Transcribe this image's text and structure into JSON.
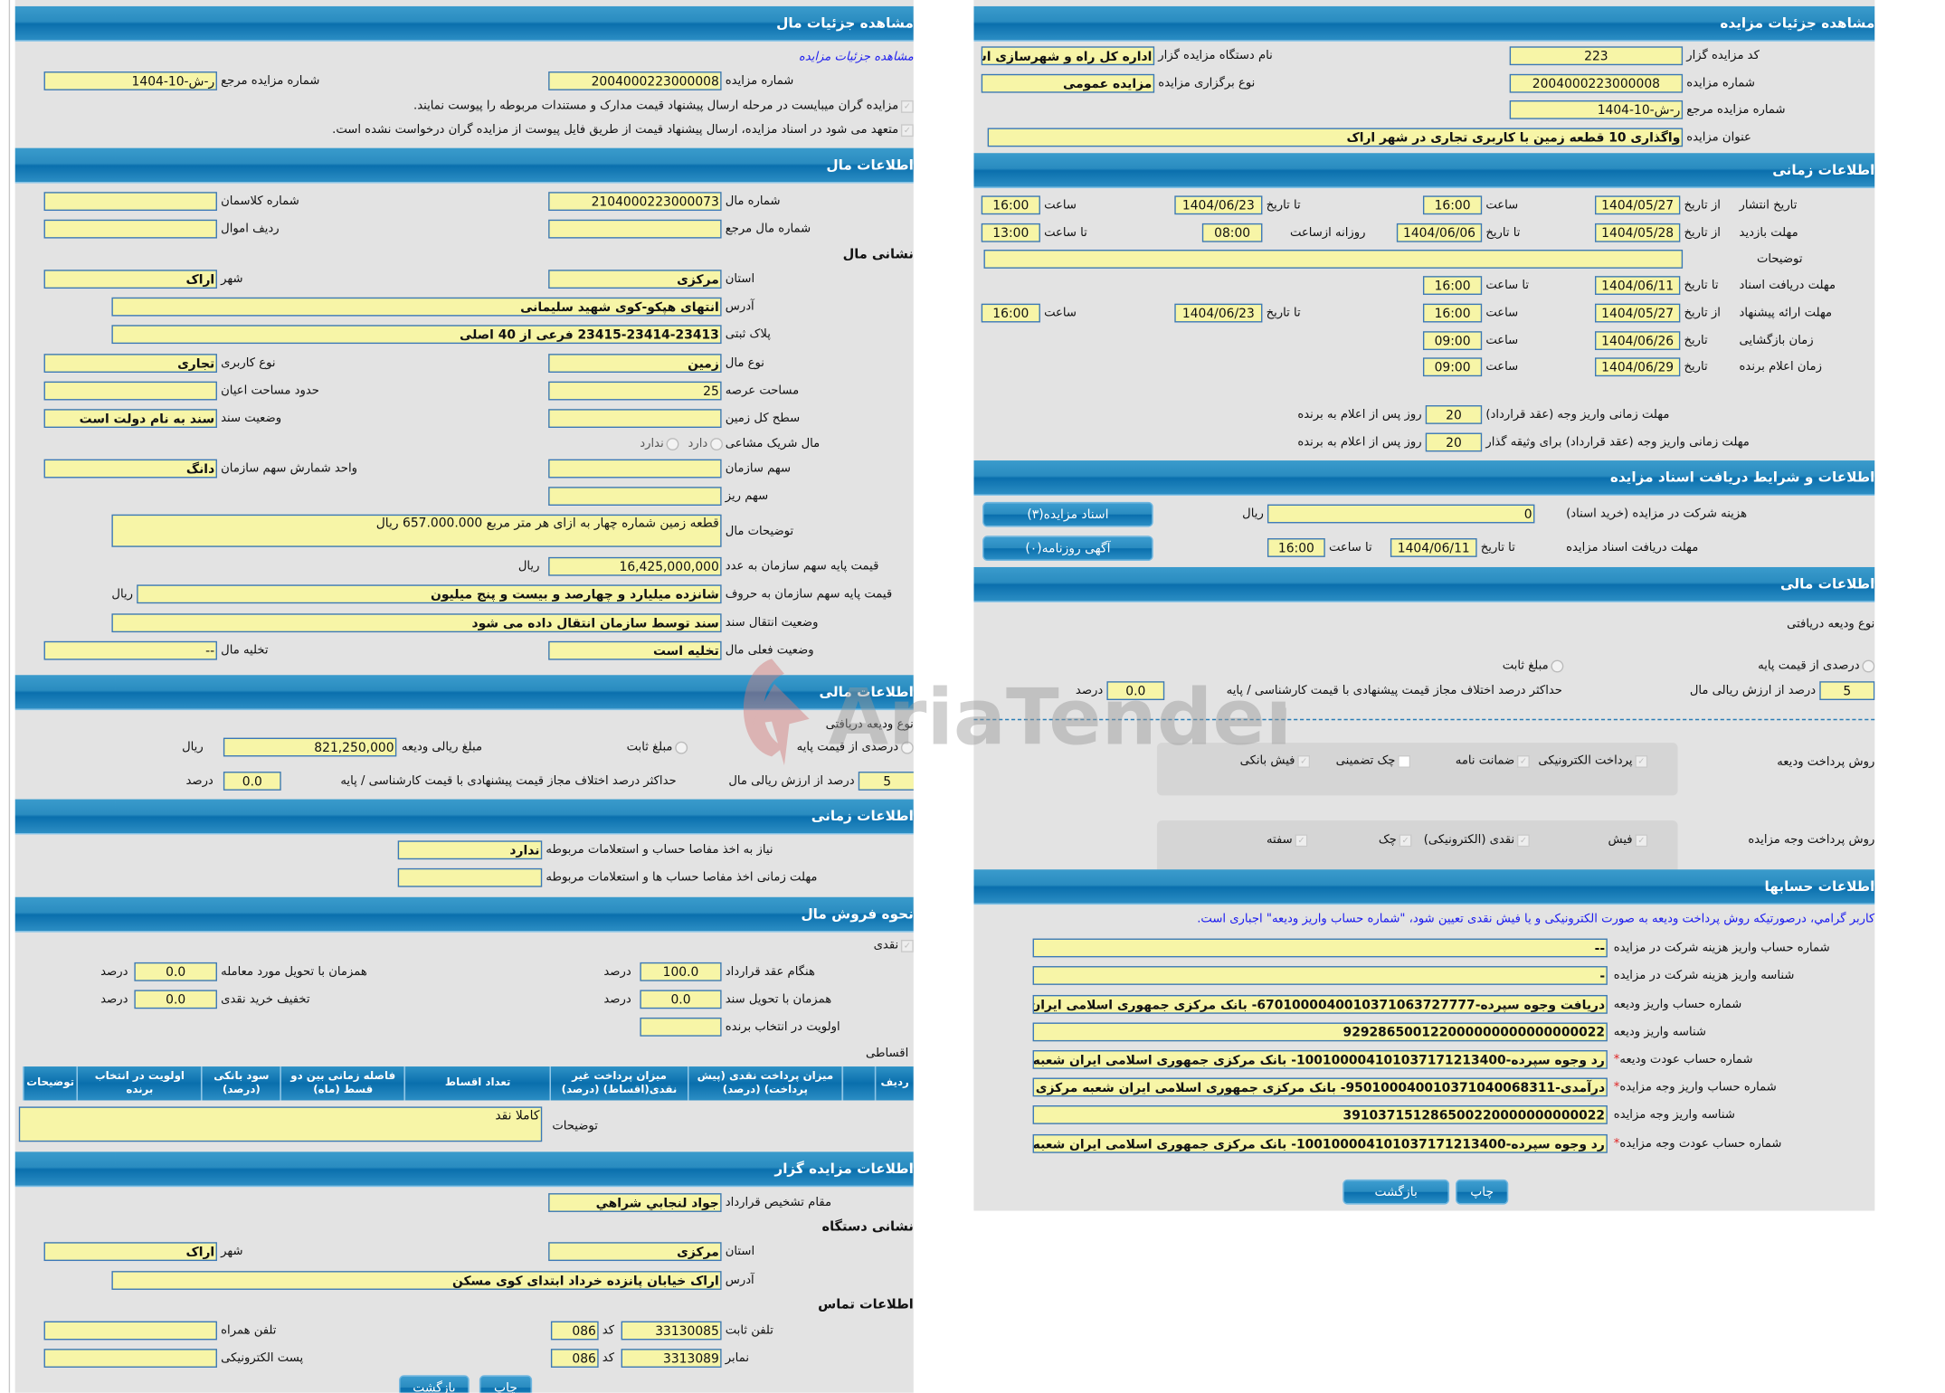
{
  "left": {
    "title": "مشاهده جزئیات مال",
    "link": "مشاهده جزئیات مزایده",
    "auction_no_label": "شماره مزایده",
    "auction_no": "2004000223000008",
    "ref_no_label": "شماره مزایده مرجع",
    "ref_no": "ر-ش-10-1404",
    "notice1": "مزایده گران میبایست در مرحله ارسال پیشنهاد قیمت مدارک و مستندات مربوطه را پیوست نمایند.",
    "notice2": "متعهد می شود در اسناد مزایده، ارسال پیشنهاد قیمت از طریق فایل پیوست از مزایده گران درخواست نشده است.",
    "item": {
      "title": "اطلاعات مال",
      "item_no_label": "شماره مال",
      "item_no": "2104000223000073",
      "class_no_label": "شماره کلاسمان",
      "class_no": "",
      "item_ref_label": "شماره مال مرجع",
      "item_ref": "",
      "row_label": "ردیف اموال",
      "row": "",
      "address_heading": "نشانی مال",
      "province_label": "استان",
      "province": "مرکزی",
      "city_label": "شهر",
      "city": "اراک",
      "address_label": "آدرس",
      "address": "انتهای هپکو-کوی شهید سلیمانی",
      "plate_label": "پلاک ثبتی",
      "plate": "23415-23414-23413 فرعی از 40 اصلی",
      "type_label": "نوع مال",
      "type": "زمین",
      "usage_label": "نوع کاربری",
      "usage": "تجاری",
      "area_label": "مساحت عرصه",
      "area": "25",
      "building_label": "حدود مساحت اعیان",
      "building": "",
      "land_label": "سطح کل زمین",
      "land": "",
      "deed_label": "وضعیت سند",
      "deed": "سند به نام دولت است",
      "shared_label": "مال شریک مشاعی",
      "shared_yes": "دارد",
      "shared_no": "ندارد",
      "org_share_label": "سهم سازمان",
      "org_share": "",
      "share_unit_label": "واحد شمارش سهم سازمان",
      "share_unit": "دانگ",
      "micro_share_label": "سهم ریز",
      "micro_share": "",
      "desc_label": "توضیحات مال",
      "desc": "قطعه زمین شماره چهار به ازای هر متر مربع 657.000.000 ریال",
      "price_num_label": "قیمت پایه سهم سازمان به عدد",
      "price_num": "16,425,000,000",
      "price_words_label": "قیمت پایه سهم سازمان به حروف",
      "price_words": "شانزده میلیارد و چهارصد و بیست و پنج میلیون",
      "rial": "ریال",
      "transfer_label": "وضعیت انتقال سند",
      "transfer": "سند توسط سازمان انتقال داده می شود",
      "status_label": "وضعیت فعلی مال",
      "status": "تخلیه است",
      "evac_label": "تخلیه مال",
      "evac": "--"
    },
    "finance": {
      "title": "اطلاعات مالی",
      "deposit_type_label": "نوع ودیعه دریافتی",
      "percent_option": "درصدی از قیمت پایه",
      "fixed_option": "مبلغ ثابت",
      "deposit_amount_label": "مبلغ ریالی ودیعه",
      "deposit_amount": "821,250,000",
      "rial": "ریال",
      "percent": "5",
      "percent_label": "درصد از ارزش ریالی مال",
      "max_diff_label": "حداکثر درصد اختلاف مجاز قیمت پیشنهادی با قیمت کارشناسی / پایه",
      "max_diff": "0.0",
      "percent_unit": "درصد"
    },
    "timing": {
      "title": "اطلاعات زمانی",
      "clearance_label": "نیاز به اخذ مفاصا حساب و استعلامات مربوطه",
      "clearance": "ندارد",
      "clearance_deadline_label": "مهلت زمانی اخذ مفاصا حساب ها و استعلامات مربوطه",
      "clearance_deadline": ""
    },
    "sale": {
      "title": "نحوه فروش مال",
      "cash_label": "نقدی",
      "on_contract_label": "هنگام عقد قرارداد",
      "on_contract": "100.0",
      "on_delivery_label": "همزمان با تحویل مورد معامله",
      "on_delivery": "0.0",
      "on_deed_label": "همزمان با تحویل سند",
      "on_deed": "0.0",
      "cash_discount_label": "تخفیف خرید نقدی",
      "cash_discount": "0.0",
      "priority_label": "اولویت در انتخاب برنده",
      "priority": "",
      "percent_unit": "درصد",
      "installment_label": "اقساطی",
      "columns": [
        "ردیف",
        "",
        "میزان پرداخت نقدی (پیش پرداخت) (درصد)",
        "میزان پرداخت غیر نقدی(اقساط) (درصد)",
        "تعداد اقساط",
        "فاصله زمانی بین دو قسط (ماه)",
        "سود بانکی (درصد)",
        "اولویت در انتخاب برنده",
        "توضیحات"
      ],
      "desc_label": "توضیحات",
      "desc": "کاملا نقد"
    },
    "auctioneer": {
      "title": "اطلاعات مزایده گزار",
      "authority_label": "مقام تشخیص قرارداد",
      "authority": "جواد لنجابي شراهي",
      "address_heading": "نشانی دستگاه",
      "province_label": "استان",
      "province": "مرکزی",
      "city_label": "شهر",
      "city": "اراک",
      "address_label": "آدرس",
      "address": "اراک خیابان پانزده خرداد ابتدای کوی مسکن",
      "contact_heading": "اطلاعات تماس",
      "phone_label": "تلفن ثابت",
      "phone": "33130085",
      "code_label": "کد",
      "phone_code": "086",
      "mobile_label": "تلفن همراه",
      "mobile": "",
      "fax_label": "نمابر",
      "fax": "3313089",
      "fax_code": "086",
      "email_label": "پست الکترونیکی",
      "email": ""
    },
    "print_button": "چاپ",
    "back_button": "بازگشت"
  },
  "right": {
    "title": "مشاهده جزئیات مزایده",
    "org_code_label": "کد مزایده گزار",
    "org_code": "223",
    "org_name_label": "نام دستگاه مزایده گزار",
    "org_name": "اداره کل راه و شهرسازی اس",
    "auction_no_label": "شماره مزایده",
    "auction_no": "2004000223000008",
    "type_label": "نوع برگزاری مزایده",
    "type": "مزایده عمومی",
    "ref_no_label": "شماره مزایده مرجع",
    "ref_no": "ر-ش-10-1404",
    "subject_label": "عنوان مزایده",
    "subject": "واگذاری 10 قطعه زمین با کاربری تجاری در شهر اراک",
    "timing": {
      "title": "اطلاعات زمانی",
      "from_date": "از تاریخ",
      "to_date": "تا تاریخ",
      "date": "تاریخ",
      "time": "ساعت",
      "to_time": "تا ساعت",
      "daily_from": "روزانه ازساعت",
      "publish_label": "تاریخ انتشار",
      "publish_from": "1404/05/27",
      "publish_from_time": "16:00",
      "publish_to": "1404/06/23",
      "publish_to_time": "16:00",
      "visit_label": "مهلت بازدید",
      "visit_from": "1404/05/28",
      "visit_to": "1404/06/06",
      "visit_daily_from": "08:00",
      "visit_to_time": "13:00",
      "desc_label": "توضیحات",
      "desc": "",
      "docs_label": "مهلت دریافت اسناد",
      "docs_to": "1404/06/11",
      "docs_to_time": "16:00",
      "offer_label": "مهلت ارائه پیشنهاد",
      "offer_from": "1404/05/27",
      "offer_from_time": "16:00",
      "offer_to": "1404/06/23",
      "offer_to_time": "16:00",
      "opening_label": "زمان بازگشایی",
      "opening_date": "1404/06/26",
      "opening_time": "09:00",
      "winner_label": "زمان اعلام برنده",
      "winner_date": "1404/06/29",
      "winner_time": "09:00",
      "pay_label": "مهلت زمانی واریز وجه (عقد قرارداد)",
      "pay_days": "20",
      "pay_guarantor_label": "مهلت زمانی واریز وجه (عقد قرارداد) برای وثیقه گذار",
      "pay_guarantor_days": "20",
      "days_suffix": "روز پس از اعلام به برنده"
    },
    "docs": {
      "title": "اطلاعات و شرایط دریافت اسناد مزایده",
      "fee_label": "هزینه شرکت در مزایده (خرید اسناد)",
      "fee": "0",
      "rial": "ریال",
      "deadline_label": "مهلت دریافت اسناد مزایده",
      "to_date": "تا تاریخ",
      "deadline_date": "1404/06/11",
      "to_time": "تا ساعت",
      "deadline_time": "16:00",
      "docs_button": "اسناد مزایده(۳)",
      "ads_button": "آگهی روزنامه(۰)"
    },
    "finance": {
      "title": "اطلاعات مالی",
      "deposit_type_label": "نوع ودیعه دریافتی",
      "percent_option": "درصدی از قیمت پایه",
      "fixed_option": "مبلغ ثابت",
      "percent": "5",
      "percent_label": "درصد از ارزش ریالی مال",
      "max_diff_label": "حداکثر درصد اختلاف مجاز قیمت پیشنهادی با قیمت کارشناسی / پایه",
      "max_diff": "0.0",
      "percent_unit": "درصد",
      "deposit_methods_label": "روش پرداخت ودیعه",
      "deposit_methods": [
        {
          "label": "پرداخت الکترونیکی",
          "checked": true
        },
        {
          "label": "ضمانت نامه",
          "checked": true
        },
        {
          "label": "چک تضمینی",
          "checked": false
        },
        {
          "label": "فیش بانکی",
          "checked": true
        }
      ],
      "payment_methods_label": "روش پرداخت وجه مزایده",
      "payment_methods": [
        {
          "label": "فیش",
          "checked": true
        },
        {
          "label": "نقدی (الکترونیکی)",
          "checked": true
        },
        {
          "label": "چک",
          "checked": true
        },
        {
          "label": "سفته",
          "checked": true
        }
      ]
    },
    "accounts": {
      "title": "اطلاعات حسابها",
      "note": "کاربر گرامي، درصورتيکه روش پرداخت وديعه به صورت الکترونيکی و يا فيش نقدی تعيين شود، \"شماره حساب واريز وديعه\" اجباری است.",
      "rows": [
        {
          "label": "شماره حساب واریز هزینه شرکت در مزایده",
          "value": "--",
          "required": false
        },
        {
          "label": "شناسه واریز هزینه شرکت در مزایده",
          "value": "-",
          "required": false
        },
        {
          "label": "شماره حساب واریز ودیعه",
          "value": "دریافت وجوه سپرده-6701000040010371063727777- بانک مرکزی جمهوری اسلامی ایران ش",
          "required": false
        },
        {
          "label": "شناسه واریز ودیعه",
          "value": "929286500122000000000000000022",
          "required": false
        },
        {
          "label": "شماره حساب عودت ودیعه",
          "value": "رد وجوه سپرده-100100004101037171213400- بانک مرکزی جمهوری اسلامی ایران شعبه",
          "required": true
        },
        {
          "label": "شماره حساب واریز وجه مزایده",
          "value": "درآمدی-950100040010371040068311- بانک مرکزی جمهوری اسلامی ایران شعبه مرکزی",
          "required": true
        },
        {
          "label": "شناسه واریز وجه مزایده",
          "value": "391037151286500220000000000022",
          "required": false
        },
        {
          "label": "شماره حساب عودت وجه مزایده",
          "value": "رد وجوه سپرده-100100004101037171213400- بانک مرکزی جمهوری اسلامی ایران شعبه",
          "required": true
        }
      ]
    },
    "print_button": "چاپ",
    "back_button": "بازگشت"
  },
  "watermark": "AriaTender.neT",
  "colors": {
    "header": "#0a6fad",
    "field_bg": "#f7f5a7",
    "field_border": "#3b78b8",
    "panel_bg": "#e3e3e3",
    "link": "#2222ee",
    "required": "#e02020"
  }
}
